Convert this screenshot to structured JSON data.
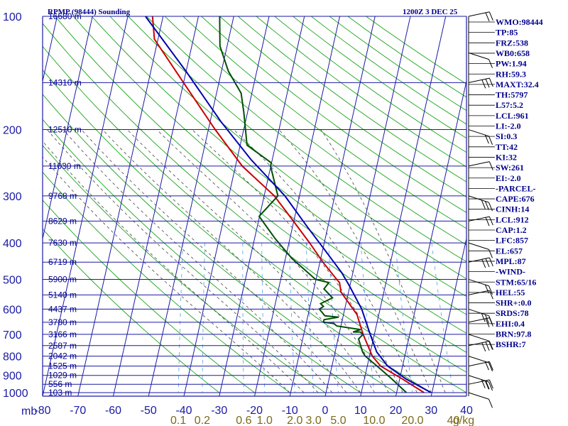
{
  "header": {
    "title": "RPMP (98444) Sounding",
    "valid_time": "1200Z  3 DEC 25"
  },
  "chart_data": {
    "type": "skew-t log-p sounding",
    "title": "RPMP (98444) Sounding",
    "valid_time": "1200Z  3 DEC 25",
    "pressure_levels_mb": [
      100,
      200,
      300,
      400,
      500,
      600,
      700,
      800,
      900,
      1000
    ],
    "pressure_label_unit": "mb",
    "pressure_range_mb": [
      100,
      1000
    ],
    "temperature_range_c": [
      -80,
      40
    ],
    "temperature_ticks": [
      "-80",
      "-70",
      "-60",
      "-50",
      "-40",
      "-30",
      "-20",
      "-10",
      "0",
      "10",
      "20",
      "30",
      "40"
    ],
    "mixing_ratio_labels": [
      "0.1",
      "0.2",
      "0.6",
      "1.0",
      "2.0",
      "3.0",
      "5.0",
      "10.0",
      "20.0",
      "40"
    ],
    "mixing_ratio_unit": "g/kg",
    "height_labels": [
      {
        "text": "16680 m",
        "p": 100
      },
      {
        "text": "14310 m",
        "p": 150
      },
      {
        "text": "12510 m",
        "p": 200
      },
      {
        "text": "11030 m",
        "p": 250
      },
      {
        "text": "9768 m",
        "p": 300
      },
      {
        "text": "8629 m",
        "p": 350
      },
      {
        "text": "7630 m",
        "p": 400
      },
      {
        "text": "6719 m",
        "p": 450
      },
      {
        "text": "5900 m",
        "p": 500
      },
      {
        "text": "5140 m",
        "p": 550
      },
      {
        "text": "4437 m",
        "p": 600
      },
      {
        "text": "3780 m",
        "p": 650
      },
      {
        "text": "3166 m",
        "p": 700
      },
      {
        "text": "2587 m",
        "p": 750
      },
      {
        "text": "2042 m",
        "p": 800
      },
      {
        "text": "1525 m",
        "p": 850
      },
      {
        "text": "1029 m",
        "p": 900
      },
      {
        "text": "556 m",
        "p": 950
      },
      {
        "text": "103 m",
        "p": 1000
      }
    ],
    "series": [
      {
        "name": "temperature",
        "color": "#cc0000",
        "points": [
          [
            28,
            1000
          ],
          [
            21,
            920
          ],
          [
            14,
            850
          ],
          [
            11,
            800
          ],
          [
            7,
            700
          ],
          [
            4,
            620
          ],
          [
            -2,
            540
          ],
          [
            -3,
            510
          ],
          [
            -4,
            500
          ],
          [
            -9,
            450
          ],
          [
            -14,
            400
          ],
          [
            -20,
            350
          ],
          [
            -27,
            300
          ],
          [
            -38,
            250
          ],
          [
            -48,
            200
          ],
          [
            -60,
            150
          ],
          [
            -71,
            115
          ],
          [
            -73,
            100
          ]
        ]
      },
      {
        "name": "dewpoint",
        "color": "#005000",
        "points": [
          [
            23,
            1000
          ],
          [
            18,
            920
          ],
          [
            13,
            850
          ],
          [
            9,
            800
          ],
          [
            8,
            780
          ],
          [
            6,
            720
          ],
          [
            7,
            700
          ],
          [
            6,
            690
          ],
          [
            4,
            690
          ],
          [
            6,
            680
          ],
          [
            -1,
            665
          ],
          [
            -2,
            655
          ],
          [
            -5,
            650
          ],
          [
            -5,
            640
          ],
          [
            -1,
            630
          ],
          [
            -5,
            625
          ],
          [
            -7,
            600
          ],
          [
            -6,
            590
          ],
          [
            -7,
            580
          ],
          [
            -4,
            560
          ],
          [
            -7,
            530
          ],
          [
            -6,
            510
          ],
          [
            -10,
            500
          ],
          [
            -18,
            440
          ],
          [
            -24,
            390
          ],
          [
            -30,
            340
          ],
          [
            -26,
            300
          ],
          [
            -30,
            250
          ],
          [
            -30,
            245
          ],
          [
            -38,
            220
          ],
          [
            -41,
            180
          ],
          [
            -43,
            160
          ],
          [
            -48,
            140
          ],
          [
            -52,
            120
          ],
          [
            -54,
            100
          ]
        ]
      },
      {
        "name": "parcel",
        "color": "#0000b0",
        "points": [
          [
            30,
            1000
          ],
          [
            22,
            920
          ],
          [
            16,
            850
          ],
          [
            12,
            780
          ],
          [
            9,
            700
          ],
          [
            5,
            600
          ],
          [
            0,
            520
          ],
          [
            -3,
            480
          ],
          [
            -9,
            420
          ],
          [
            -16,
            360
          ],
          [
            -24,
            300
          ],
          [
            -36,
            240
          ],
          [
            -47,
            190
          ],
          [
            -60,
            140
          ],
          [
            -75,
            100
          ]
        ]
      }
    ],
    "wind_barbs": [
      {
        "p": 1000
      },
      {
        "p": 950
      },
      {
        "p": 900
      },
      {
        "p": 850
      },
      {
        "p": 800
      },
      {
        "p": 750
      },
      {
        "p": 700
      },
      {
        "p": 650
      },
      {
        "p": 600
      },
      {
        "p": 550
      },
      {
        "p": 500
      },
      {
        "p": 450
      },
      {
        "p": 400
      },
      {
        "p": 350
      },
      {
        "p": 300
      },
      {
        "p": 250
      },
      {
        "p": 200
      },
      {
        "p": 150
      },
      {
        "p": 125
      },
      {
        "p": 100
      }
    ],
    "indices": [
      "WMO:98444",
      "TP:85",
      "FRZ:538",
      "WB0:658",
      "PW:1.94",
      "RH:59.3",
      "MAXT:32.4",
      "TH:5797",
      "L57:5.2",
      "LCL:961",
      "LI:-2.0",
      "SI:0.3",
      "TT:42",
      "KI:32",
      "SW:261",
      "EI:-2.0",
      "-PARCEL-",
      "CAPE:676",
      "CINH:14",
      "LCL:912",
      "CAP:1.2",
      "LFC:857",
      "EL:657",
      "MPL:87",
      "-WIND-",
      "STM:65/16",
      "HEL:55",
      "SHR+:0.0",
      "SRDS:78",
      "EHI:0.4",
      "BRN:97.8",
      "BSHR:7"
    ]
  }
}
